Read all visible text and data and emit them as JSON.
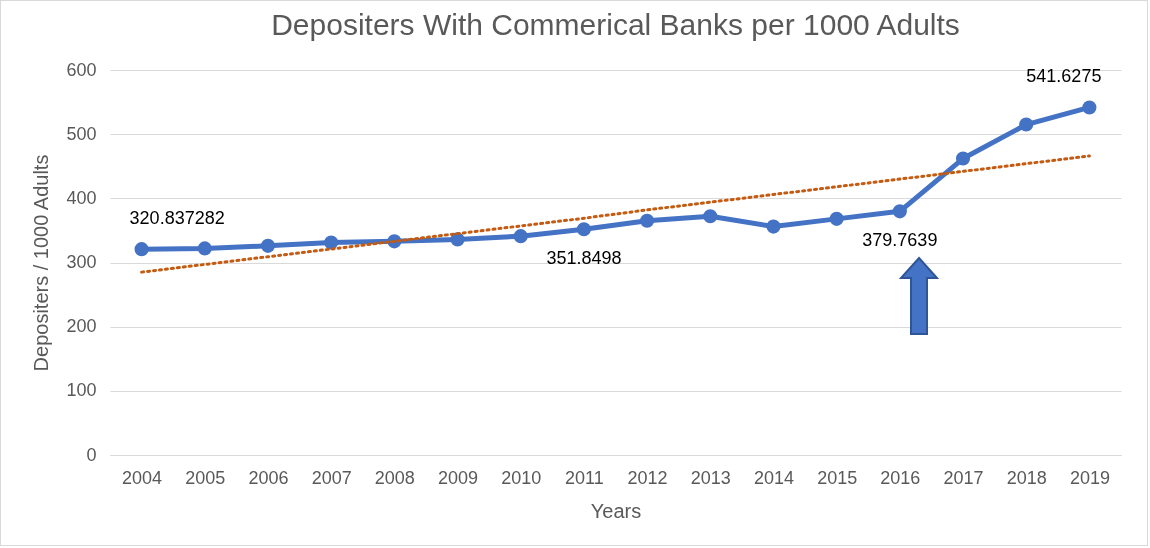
{
  "chart_data": {
    "type": "line",
    "title": "Depositers With Commerical Banks per 1000 Adults",
    "xlabel": "Years",
    "ylabel": "Depositers / 1000 Adults",
    "categories": [
      "2004",
      "2005",
      "2006",
      "2007",
      "2008",
      "2009",
      "2010",
      "2011",
      "2012",
      "2013",
      "2014",
      "2015",
      "2016",
      "2017",
      "2018",
      "2019"
    ],
    "series": [
      {
        "color": "#4472c4",
        "marker": "circle",
        "line_style": "solid",
        "values": [
          320.837282,
          322,
          326,
          331,
          333,
          336,
          341,
          351.8498,
          365,
          372,
          356,
          368,
          379.7639,
          462,
          515,
          541.6275
        ],
        "value_labels": [
          "320.837282",
          null,
          null,
          null,
          null,
          null,
          null,
          "351.8498",
          null,
          null,
          null,
          null,
          "379.7639",
          null,
          null,
          "541.6275"
        ]
      },
      {
        "color": "#c55a11",
        "marker": "none",
        "line_style": "dotted",
        "values": [
          285,
          297,
          309,
          321,
          333,
          345,
          357,
          369,
          382,
          394,
          406,
          418,
          430,
          442,
          454,
          466
        ]
      }
    ],
    "ylim": [
      0,
      600
    ],
    "yticks": [
      0,
      100,
      200,
      300,
      400,
      500,
      600
    ],
    "grid": "y"
  }
}
